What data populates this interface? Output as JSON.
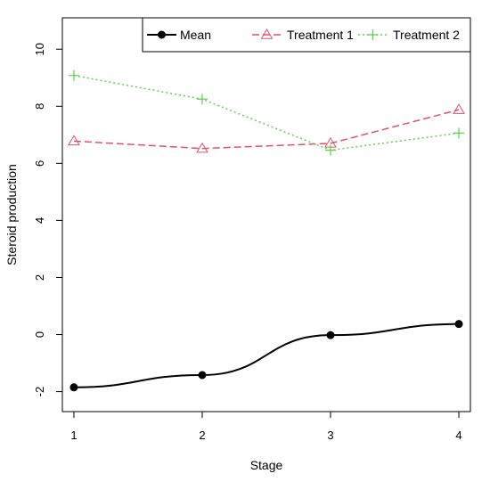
{
  "chart_data": {
    "type": "line",
    "title": "",
    "xlabel": "Stage",
    "ylabel": "Steroid production",
    "x": [
      1,
      2,
      3,
      4
    ],
    "xlim": [
      0.91,
      4.09
    ],
    "ylim": [
      -2.7,
      11.1
    ],
    "xticks": [
      "1",
      "2",
      "3",
      "4"
    ],
    "yticks": [
      "-2",
      "0",
      "2",
      "4",
      "6",
      "8",
      "10"
    ],
    "grid": false,
    "legend_position": "top-right",
    "series": [
      {
        "name": "Mean",
        "values": [
          -1.85,
          -1.42,
          -0.02,
          0.37
        ],
        "color": "#000000",
        "line": "solid",
        "marker": "filled-circle",
        "smooth": true
      },
      {
        "name": "Treatment 1",
        "values": [
          6.78,
          6.52,
          6.7,
          7.88
        ],
        "color": "#DF536B",
        "line": "dashed",
        "marker": "triangle",
        "smooth": false
      },
      {
        "name": "Treatment 2",
        "values": [
          9.08,
          8.25,
          6.46,
          7.06
        ],
        "color": "#61D04F",
        "line": "dotted",
        "marker": "plus",
        "smooth": false
      }
    ]
  }
}
